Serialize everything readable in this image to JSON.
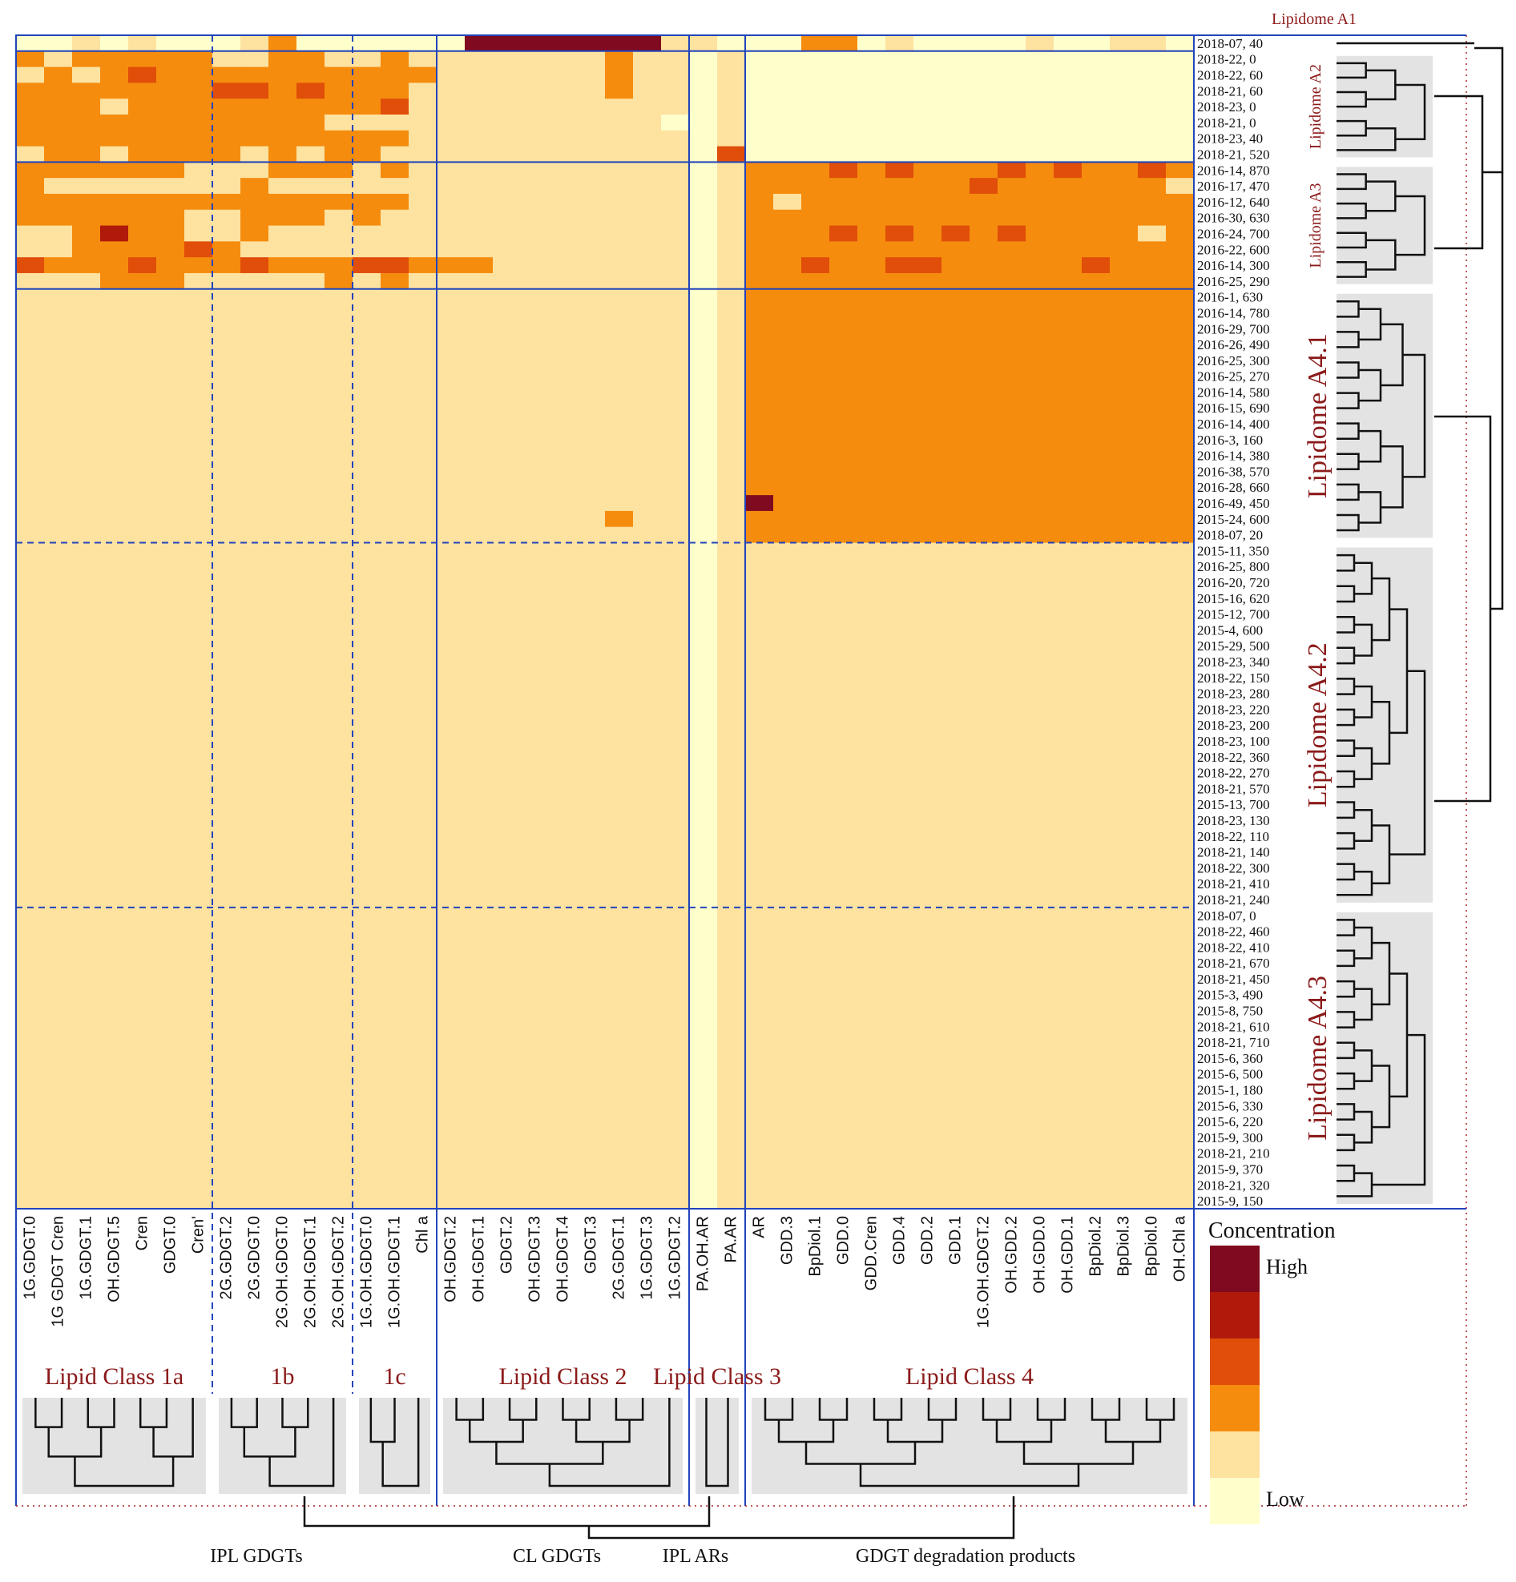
{
  "chart_data": {
    "type": "heatmap",
    "title": "",
    "xlabel": "",
    "ylabel": "",
    "columns": [
      "1G.GDGT.0",
      "1G GDGT Cren",
      "1G.GDGT.1",
      "OH.GDGT.5",
      "Cren",
      "GDGT.0",
      "Cren'",
      "2G.GDGT.2",
      "2G.GDGT.0",
      "2G.OH.GDGT.0",
      "2G.OH.GDGT.1",
      "2G.OH.GDGT.2",
      "1G.OH.GDGT.0",
      "1G.OH.GDGT.1",
      "Chl a",
      "OH.GDGT.2",
      "OH.GDGT.1",
      "GDGT.2",
      "OH.GDGT.3",
      "OH.GDGT.4",
      "GDGT.3",
      "2G.GDGT.1",
      "1G.GDGT.3",
      "1G.GDGT.2",
      "PA.OH.AR",
      "PA.AR",
      "AR",
      "GDD.3",
      "BpDiol.1",
      "GDD.0",
      "GDD.Cren",
      "GDD.4",
      "GDD.2",
      "GDD.1",
      "1G.OH.GDGT.2",
      "OH.GDD.2",
      "OH.GDD.0",
      "OH.GDD.1",
      "BpDiol.2",
      "BpDiol.3",
      "BpDiol.0",
      "OH.Chl a"
    ],
    "rows": [
      "2018-07, 40",
      "2018-22, 0",
      "2018-22, 60",
      "2018-21, 60",
      "2018-23, 0",
      "2018-21, 0",
      "2018-23, 40",
      "2018-21, 520",
      "2016-14, 870",
      "2016-17, 470",
      "2016-12, 640",
      "2016-30, 630",
      "2016-24, 700",
      "2016-22, 600",
      "2016-14, 300",
      "2016-25, 290",
      "2016-1, 630",
      "2016-14, 780",
      "2016-29, 700",
      "2016-26, 490",
      "2016-25, 300",
      "2016-25, 270",
      "2016-14, 580",
      "2016-15, 690",
      "2016-14, 400",
      "2016-3, 160",
      "2016-14, 380",
      "2016-38, 570",
      "2016-28, 660",
      "2016-49, 450",
      "2015-24, 600",
      "2018-07, 20",
      "2015-11, 350",
      "2016-25, 800",
      "2016-20, 720",
      "2015-16, 620",
      "2015-12, 700",
      "2015-4, 600",
      "2015-29, 500",
      "2018-23, 340",
      "2018-22, 150",
      "2018-23, 280",
      "2018-23, 220",
      "2018-23, 200",
      "2018-23, 100",
      "2018-22, 360",
      "2018-22, 270",
      "2018-21, 570",
      "2015-13, 700",
      "2018-23, 130",
      "2018-22, 110",
      "2018-21, 140",
      "2018-22, 300",
      "2018-21, 410",
      "2018-21, 240",
      "2018-07, 0",
      "2018-22, 460",
      "2018-22, 410",
      "2018-21, 670",
      "2018-21, 450",
      "2015-3, 490",
      "2015-8, 750",
      "2018-21, 610",
      "2018-21, 710",
      "2015-6, 360",
      "2015-6, 500",
      "2015-1, 180",
      "2015-6, 330",
      "2015-6, 220",
      "2015-9, 300",
      "2018-21, 210",
      "2015-9, 370",
      "2018-21, 320",
      "2015-9, 150"
    ],
    "row_groups": [
      {
        "label": "Lipidome A1",
        "rows": 1
      },
      {
        "label": "Lipidome A2",
        "rows": 7
      },
      {
        "label": "Lipidome A3",
        "rows": 8
      },
      {
        "label": "Lipidome A4.1",
        "rows": 16
      },
      {
        "label": "Lipidome A4.2",
        "rows": 23
      },
      {
        "label": "Lipidome A4.3",
        "rows": 19
      }
    ],
    "column_groups": [
      {
        "label": "Lipid Class 1a",
        "cols": 7
      },
      {
        "label": "1b",
        "cols": 5
      },
      {
        "label": "1c",
        "cols": 3
      },
      {
        "label": "Lipid Class 2",
        "cols": 9
      },
      {
        "label": "Lipid Class 3",
        "cols": 2
      },
      {
        "label": "Lipid Class 4",
        "cols": 16
      }
    ],
    "bottom_labels": [
      "IPL GDGTs",
      "CL GDGTs",
      "IPL ARs",
      "GDGT  degradation products"
    ],
    "legend": {
      "title": "Concentration",
      "high": "High",
      "low": "Low"
    },
    "color_scale": [
      "#ffffcc",
      "#fde2a0",
      "#f58c0e",
      "#e04e09",
      "#b01a0b",
      "#800a1f"
    ],
    "level_range": [
      0,
      5
    ],
    "values_encoding": "levels 0-5 on a 6-step color scale; row strings correspond to rows in order, one character per column",
    "values": [
      "001010001200000055555551100022010000100110",
      "212222211221121111111211010000000000000000",
      "121232222222222111111211010000000000000000",
      "222222233232221111111211010000000000000000",
      "222122222222231111111111010000000000000000",
      "222222222221111111111110010000000000000000",
      "222222222222221111111111010000000000000000",
      "122122221212211111111111030000000000000000",
      "222222111222121111111111012223232223232232",
      "211111112111111111111111012222222232222221",
      "222222222222221111111111012122222222222222",
      "222222112221211111111111012222222222222222",
      "112422112111111111111111012223232323222212",
      "112222321111111111111111012222222222222222",
      "322232223222332221111111012232233222223222",
      "111222111112121111111111012222222222222222",
      "111111111111111111111111012222222222222222",
      "111111111111111111111111012222222222222222",
      "111111111111111111111111012222222222222222",
      "111111111111111111111111012222222222222222",
      "111111111111111111111111012222222222222222",
      "111111111111111111111111012222222222222222",
      "111111111111111111111111012222222222222222",
      "111111111111111111111111012222222222222222",
      "111111111111111111111111012222222222222222",
      "111111111111111111111111012222222222222222",
      "111111111111111111111111012222222222222222",
      "111111111111111111111111012222222222222222",
      "111111111111111111111111012222222222222222",
      "111111111111111111111111015222222222222222",
      "111111111111111111111211012222222222222222",
      "111111111111111111111111012222222222222222",
      "111111111111111111111111011111111111111111",
      "111111111111111111111111011111111111111111",
      "111111111111111111111111011111111111111111",
      "111111111111111111111111011111111111111111",
      "111111111111111111111111011111111111111111",
      "111111111111111111111111011111111111111111",
      "111111111111111111111111011111111111111111",
      "111111111111111111111111011111111111111111",
      "111111111111111111111111011111111111111111",
      "111111111111111111111111011111111111111111",
      "111111111111111111111111011111111111111111",
      "111111111111111111111111011111111111111111",
      "111111111111111111111111011111111111111111",
      "111111111111111111111111011111111111111111",
      "111111111111111111111111011111111111111111",
      "111111111111111111111111011111111111111111",
      "111111111111111111111111011111111111111111",
      "111111111111111111111111011111111111111111",
      "111111111111111111111111011111111111111111",
      "111111111111111111111111011111111111111111",
      "111111111111111111111111011111111111111111",
      "111111111111111111111111011111111111111111",
      "111111111111111111111111011111111111111111",
      "111111111111111111111111011111111111111111",
      "111111111111111111111111011111111111111111",
      "111111111111111111111111011111111111111111",
      "111111111111111111111111011111111111111111",
      "111111111111111111111111011111111111111111",
      "111111111111111111111111011111111111111111",
      "111111111111111111111111011111111111111111",
      "111111111111111111111111011111111111111111",
      "111111111111111111111111011111111111111111",
      "111111111111111111111111011111111111111111",
      "111111111111111111111111011111111111111111",
      "111111111111111111111111011111111111111111",
      "111111111111111111111111011111111111111111",
      "111111111111111111111111011111111111111111",
      "111111111111111111111111011111111111111111",
      "111111111111111111111111011111111111111111",
      "111111111111111111111111011111111111111111",
      "111111111111111111111111011111111111111111",
      "111111111111111111111111011111111111111111"
    ]
  }
}
